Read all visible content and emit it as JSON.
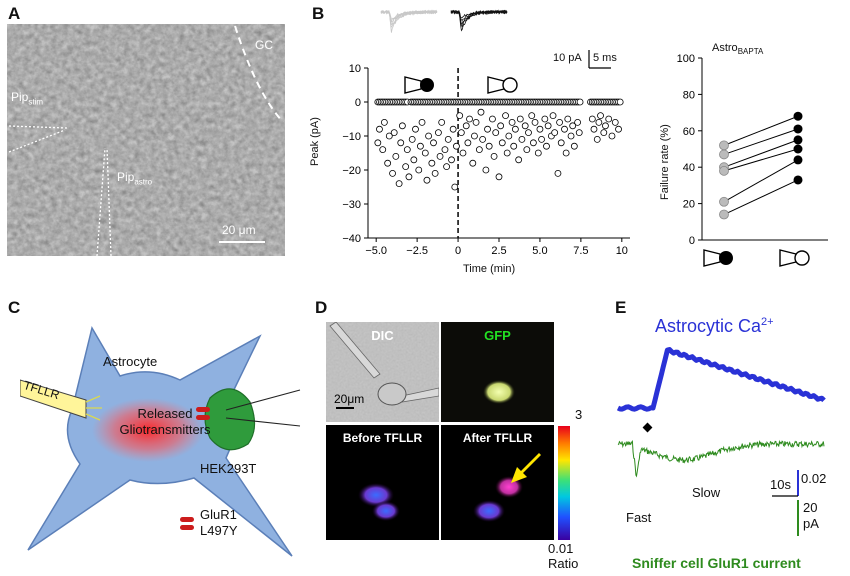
{
  "panels": {
    "A": {
      "letter": "A",
      "label_gc": "GC",
      "label_pip_stim_base": "Pip",
      "label_pip_stim_sub": "stim",
      "label_pip_astro_base": "Pip",
      "label_pip_astro_sub": "astro",
      "scalebar": "20 μm"
    },
    "B": {
      "letter": "B",
      "scale_label_pa": "10 pA",
      "scale_label_ms": "5 ms",
      "right_title_base": "Astro",
      "right_title_sub": "BAPTA"
    },
    "C": {
      "letter": "C",
      "astrocyte": "Astrocyte",
      "tfllr": "TFLLR",
      "released_line1": "Released",
      "released_line2": "Gliotransmitters",
      "hek": "HEK293T",
      "glur_line1": "GluR1",
      "glur_line2": "L497Y"
    },
    "D": {
      "letter": "D",
      "dic": "DIC",
      "gfp": "GFP",
      "scalebar": "20μm",
      "before": "Before TFLLR",
      "after": "After TFLLR",
      "cbar_max": "3",
      "cbar_min": "0.01",
      "cbar_label": "Ratio"
    },
    "E": {
      "letter": "E",
      "title_base": "Astrocytic Ca",
      "title_sup": "2+",
      "fast": "Fast",
      "slow": "Slow",
      "scale_time": "10s",
      "scale_ratio": "0.02",
      "scale_current_1": "20",
      "scale_current_2": "pA",
      "footer": "Sniffer cell GluR1 current"
    }
  },
  "colors": {
    "astro_blue": "#2a32d6",
    "glur_green": "#2e8b1e",
    "astrocyte_fill": "#8fb1e0",
    "hek_green": "#2f9b3c",
    "glur_red": "#cc1c1c"
  },
  "chart_data": [
    {
      "type": "scatter",
      "panel": "B-left",
      "xlabel": "Time (min)",
      "ylabel": "Peak (pA)",
      "xlim": [
        -5.5,
        10.5
      ],
      "ylim": [
        -40,
        10
      ],
      "xticks": [
        -5.0,
        -2.5,
        0,
        2.5,
        5.0,
        7.5,
        10
      ],
      "xtick_labels": [
        "−5.0",
        "−2.5",
        "0",
        "2.5",
        "5.0",
        "7.5",
        "10"
      ],
      "yticks": [
        10,
        0,
        -10,
        -20,
        -30,
        -40
      ],
      "ytick_labels": [
        "10",
        "0",
        "−10",
        "−20",
        "−30",
        "−40"
      ],
      "vline_x": 0,
      "failures_y": 0,
      "failure_count": 140,
      "successes": [
        [
          -4.9,
          -12
        ],
        [
          -4.8,
          -8
        ],
        [
          -4.6,
          -14
        ],
        [
          -4.5,
          -6
        ],
        [
          -4.3,
          -18
        ],
        [
          -4.2,
          -10
        ],
        [
          -4.0,
          -21
        ],
        [
          -3.9,
          -9
        ],
        [
          -3.8,
          -16
        ],
        [
          -3.6,
          -24
        ],
        [
          -3.5,
          -12
        ],
        [
          -3.4,
          -7
        ],
        [
          -3.2,
          -19
        ],
        [
          -3.1,
          -14
        ],
        [
          -3.0,
          -22
        ],
        [
          -2.8,
          -11
        ],
        [
          -2.7,
          -17
        ],
        [
          -2.6,
          -8
        ],
        [
          -2.4,
          -20
        ],
        [
          -2.3,
          -13
        ],
        [
          -2.2,
          -6
        ],
        [
          -2.0,
          -15
        ],
        [
          -1.9,
          -23
        ],
        [
          -1.8,
          -10
        ],
        [
          -1.6,
          -18
        ],
        [
          -1.5,
          -12
        ],
        [
          -1.4,
          -21
        ],
        [
          -1.2,
          -9
        ],
        [
          -1.1,
          -16
        ],
        [
          -1.0,
          -6
        ],
        [
          -0.8,
          -14
        ],
        [
          -0.7,
          -19
        ],
        [
          -0.6,
          -11
        ],
        [
          -0.4,
          -17
        ],
        [
          -0.3,
          -8
        ],
        [
          -0.2,
          -25
        ],
        [
          -0.1,
          -13
        ],
        [
          0.1,
          -4
        ],
        [
          0.2,
          -9
        ],
        [
          0.3,
          -15
        ],
        [
          0.5,
          -7
        ],
        [
          0.6,
          -12
        ],
        [
          0.7,
          -5
        ],
        [
          0.9,
          -18
        ],
        [
          1.0,
          -10
        ],
        [
          1.1,
          -6
        ],
        [
          1.3,
          -14
        ],
        [
          1.4,
          -3
        ],
        [
          1.5,
          -11
        ],
        [
          1.7,
          -20
        ],
        [
          1.8,
          -8
        ],
        [
          1.9,
          -13
        ],
        [
          2.1,
          -5
        ],
        [
          2.2,
          -16
        ],
        [
          2.3,
          -9
        ],
        [
          2.5,
          -22
        ],
        [
          2.6,
          -7
        ],
        [
          2.7,
          -12
        ],
        [
          2.9,
          -4
        ],
        [
          3.0,
          -15
        ],
        [
          3.1,
          -10
        ],
        [
          3.3,
          -6
        ],
        [
          3.4,
          -13
        ],
        [
          3.5,
          -8
        ],
        [
          3.7,
          -17
        ],
        [
          3.8,
          -5
        ],
        [
          3.9,
          -11
        ],
        [
          4.1,
          -7
        ],
        [
          4.2,
          -14
        ],
        [
          4.3,
          -9
        ],
        [
          4.5,
          -4
        ],
        [
          4.6,
          -12
        ],
        [
          4.7,
          -6
        ],
        [
          4.9,
          -15
        ],
        [
          5.0,
          -8
        ],
        [
          5.1,
          -11
        ],
        [
          5.3,
          -5
        ],
        [
          5.4,
          -13
        ],
        [
          5.5,
          -7
        ],
        [
          5.7,
          -10
        ],
        [
          5.8,
          -4
        ],
        [
          5.9,
          -9
        ],
        [
          6.1,
          -21
        ],
        [
          6.2,
          -6
        ],
        [
          6.3,
          -12
        ],
        [
          6.5,
          -8
        ],
        [
          6.6,
          -15
        ],
        [
          6.7,
          -5
        ],
        [
          6.9,
          -10
        ],
        [
          7.0,
          -7
        ],
        [
          7.1,
          -13
        ],
        [
          7.3,
          -6
        ],
        [
          7.4,
          -9
        ],
        [
          8.2,
          -5
        ],
        [
          8.3,
          -8
        ],
        [
          8.5,
          -11
        ],
        [
          8.6,
          -6
        ],
        [
          8.7,
          -4
        ],
        [
          8.9,
          -9
        ],
        [
          9.0,
          -7
        ],
        [
          9.2,
          -5
        ],
        [
          9.4,
          -10
        ],
        [
          9.6,
          -6
        ],
        [
          9.8,
          -8
        ]
      ]
    },
    {
      "type": "line",
      "panel": "B-right",
      "ylabel": "Failure rate (%)",
      "ylim": [
        0,
        100
      ],
      "yticks": [
        0,
        20,
        40,
        60,
        80,
        100
      ],
      "pairs": [
        [
          52,
          68
        ],
        [
          47,
          61
        ],
        [
          40,
          55
        ],
        [
          38,
          50
        ],
        [
          21,
          44
        ],
        [
          14,
          33
        ]
      ]
    }
  ]
}
